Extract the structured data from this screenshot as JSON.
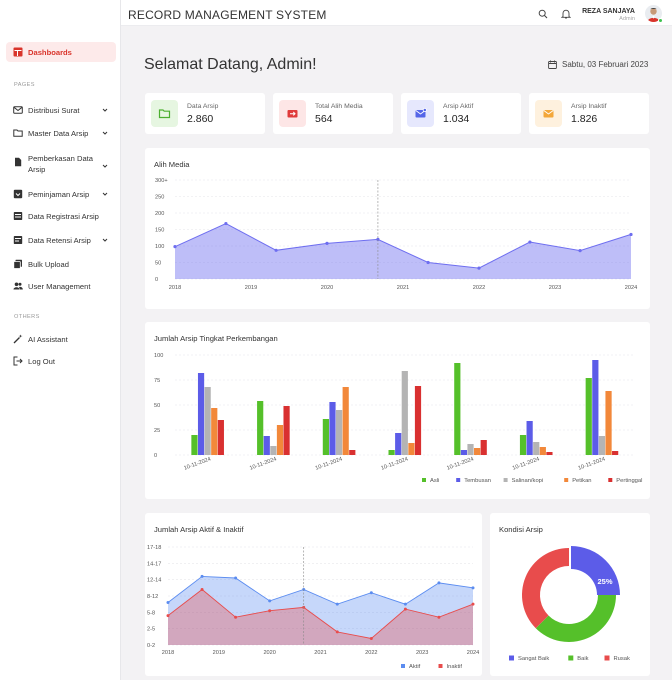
{
  "app": {
    "title": "RECORD MANAGEMENT SYSTEM",
    "user_name": "REZA SANJAYA",
    "user_role": "Admin"
  },
  "sidebar": {
    "active_item": "Dashboards",
    "section_pages": "PAGES",
    "section_others": "OTHERS",
    "items": [
      {
        "label": "Distribusi Surat",
        "icon": "mail-icon",
        "has_sub": true
      },
      {
        "label": "Master Data Arsip",
        "icon": "folder-icon",
        "has_sub": true
      },
      {
        "label": "Pemberkasan Data",
        "label2": "Arsip",
        "icon": "file-icon",
        "has_sub": true
      },
      {
        "label": "Peminjaman Arsip",
        "icon": "loan-icon",
        "has_sub": true
      },
      {
        "label": "Data Registrasi Arsip",
        "icon": "register-icon",
        "has_sub": false
      },
      {
        "label": "Data Retensi Arsip",
        "icon": "retention-icon",
        "has_sub": true
      },
      {
        "label": "Bulk Upload",
        "icon": "upload-icon",
        "has_sub": false
      },
      {
        "label": "User Management",
        "icon": "users-icon",
        "has_sub": false
      }
    ],
    "others": [
      {
        "label": "AI Assistant",
        "icon": "magic-wand-icon"
      },
      {
        "label": "Log Out",
        "icon": "logout-icon"
      }
    ]
  },
  "main": {
    "welcome": "Selamat Datang, Admin!",
    "date": "Sabtu, 03 Februari 2023"
  },
  "stats": [
    {
      "label": "Data Arsip",
      "value": "2.860",
      "color": "#4caf30",
      "bg": "#e6f6e1",
      "icon": "folder-icon"
    },
    {
      "label": "Total Alih Media",
      "value": "564",
      "color": "#e03a3a",
      "bg": "#fde6e6",
      "icon": "transfer-icon"
    },
    {
      "label": "Arsip Aktif",
      "value": "1.034",
      "color": "#5566e8",
      "bg": "#e6e8fd",
      "icon": "mail-icon"
    },
    {
      "label": "Arsip Inaktif",
      "value": "1.826",
      "color": "#f3a73a",
      "bg": "#fef1de",
      "icon": "mail-icon"
    }
  ],
  "chart_data": [
    {
      "type": "area",
      "title": "Alih Media",
      "x_ticks": [
        "2018",
        "2019",
        "2020",
        "2021",
        "2022",
        "2023",
        "2024"
      ],
      "y_ticks": [
        "0",
        "50",
        "100",
        "150",
        "200",
        "250",
        "300+"
      ],
      "ylim": [
        0,
        300
      ],
      "x": [
        2018,
        2018.67,
        2019.33,
        2020,
        2020.67,
        2021.33,
        2022,
        2022.67,
        2023.33,
        2024
      ],
      "values": [
        98,
        168,
        87,
        108,
        120,
        50,
        33,
        112,
        86,
        135
      ],
      "color": "#6e6ef0",
      "grid": true
    },
    {
      "type": "bar",
      "title": "Jumlah Arsip Tingkat Perkembangan",
      "categories": [
        "10-11-2024",
        "10-11-2024",
        "10-11-2024",
        "10-11-2024",
        "10-11-2024",
        "10-11-2024",
        "10-11-2024"
      ],
      "y_ticks": [
        "0",
        "25",
        "50",
        "75",
        "100"
      ],
      "ylim": [
        0,
        100
      ],
      "series": [
        {
          "name": "Asli",
          "color": "#55c02a",
          "values": [
            20,
            54,
            36,
            5,
            92,
            20,
            77
          ]
        },
        {
          "name": "Tembusan",
          "color": "#5c5ce8",
          "values": [
            82,
            19,
            53,
            22,
            5,
            34,
            95
          ]
        },
        {
          "name": "Salinan/kopi",
          "color": "#b4b4b4",
          "values": [
            68,
            9,
            45,
            84,
            11,
            13,
            19
          ]
        },
        {
          "name": "Petikan",
          "color": "#f2883a",
          "values": [
            47,
            30,
            68,
            12,
            7,
            8,
            64
          ]
        },
        {
          "name": "Pertinggal",
          "color": "#d93030",
          "values": [
            35,
            49,
            5,
            69,
            15,
            3,
            4
          ]
        }
      ],
      "legend": "bottom-right",
      "grid": true
    },
    {
      "type": "area",
      "title": "Jumlah Arsip Aktif & Inaktif",
      "x_ticks": [
        "2018",
        "2019",
        "2020",
        "2021",
        "2022",
        "2023",
        "2024"
      ],
      "y_ticks": [
        "0-2",
        "2-5",
        "5-8",
        "8-12",
        "12-14",
        "14-17",
        "17-18"
      ],
      "ylim": [
        0,
        6
      ],
      "x": [
        2018,
        2018.67,
        2019.33,
        2020,
        2020.67,
        2021.33,
        2022,
        2022.67,
        2023.33,
        2024
      ],
      "series": [
        {
          "name": "Aktif",
          "color": "#5b8cf0",
          "values": [
            2.6,
            4.2,
            4.1,
            2.7,
            3.4,
            2.5,
            3.2,
            2.5,
            3.8,
            3.5
          ]
        },
        {
          "name": "Inaktif",
          "color": "#e84c4c",
          "values": [
            1.8,
            3.4,
            1.7,
            2.1,
            2.3,
            0.8,
            0.4,
            2.2,
            1.7,
            2.5
          ]
        }
      ],
      "legend": "bottom-right",
      "grid": true
    },
    {
      "type": "pie",
      "title": "Kondisi Arsip",
      "series": [
        {
          "name": "Sangat Baik",
          "color": "#5c5ce8",
          "value": 25
        },
        {
          "name": "Baik",
          "color": "#55c02a",
          "value": 37.5
        },
        {
          "name": "Rusak",
          "color": "#e84c4c",
          "value": 37.5
        }
      ],
      "slice_label": "25%",
      "legend": "bottom"
    }
  ]
}
